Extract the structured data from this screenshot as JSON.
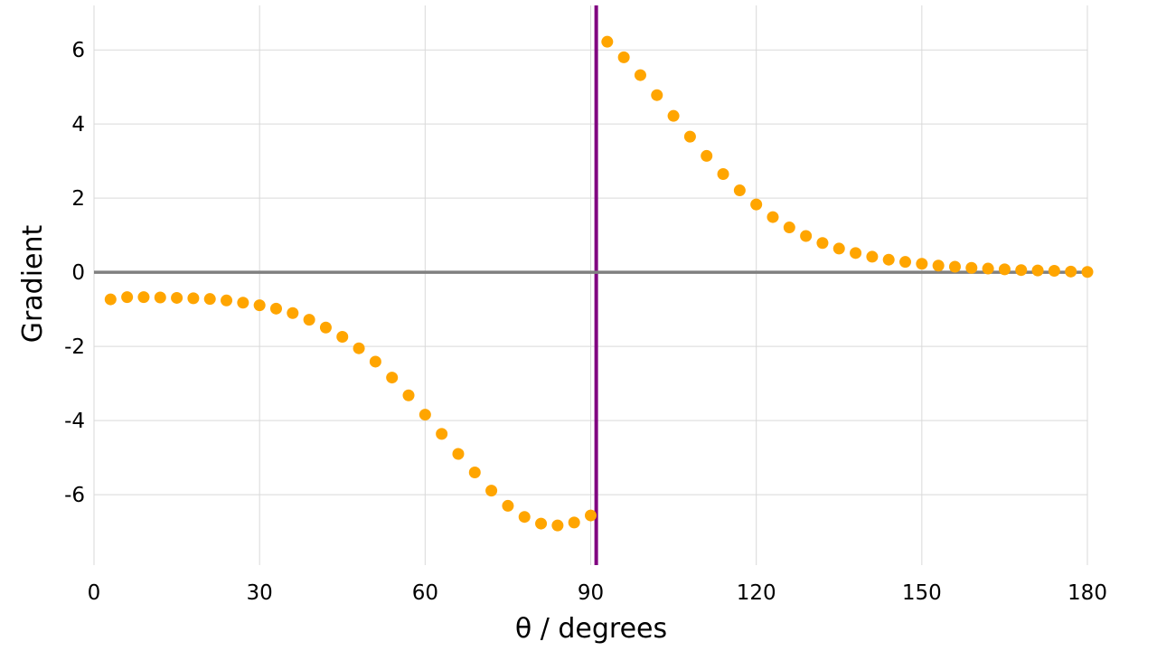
{
  "chart_data": {
    "type": "scatter",
    "title": "",
    "xlabel": "θ / degrees",
    "ylabel": "Gradient",
    "xlim": [
      0,
      180
    ],
    "ylim": [
      -7.9,
      7.2
    ],
    "x_ticks": [
      0,
      30,
      60,
      90,
      120,
      150,
      180
    ],
    "x_tick_labels": [
      "0",
      "30",
      "60",
      "90",
      "120",
      "150",
      "180"
    ],
    "y_ticks": [
      -6,
      -4,
      -2,
      0,
      2,
      4,
      6
    ],
    "y_tick_labels": [
      "-6",
      "-4",
      "-2",
      "0",
      "2",
      "4",
      "6"
    ],
    "grid": true,
    "legend": "none",
    "colors": {
      "points": "#ffa500",
      "vertical_line": "#800080",
      "zero_line": "#808080",
      "grid": "#d9d9d9"
    },
    "reference_lines": [
      {
        "orientation": "vertical",
        "x": 91,
        "color": "#800080"
      },
      {
        "orientation": "horizontal",
        "y": 0,
        "color": "#808080"
      }
    ],
    "series": [
      {
        "x": [
          3,
          6,
          9,
          12,
          15,
          18,
          21,
          24,
          27,
          30,
          33,
          36,
          39,
          42,
          45,
          48,
          51,
          54,
          57,
          60,
          63,
          66,
          69,
          72,
          75,
          78,
          81,
          84,
          87,
          90,
          93,
          96,
          99,
          102,
          105,
          108,
          111,
          114,
          117,
          120,
          123,
          126,
          129,
          132,
          135,
          138,
          141,
          144,
          147,
          150,
          153,
          156,
          159,
          162,
          165,
          168,
          171,
          174,
          177,
          180
        ],
        "y": [
          -0.73,
          -0.67,
          -0.67,
          -0.68,
          -0.69,
          -0.7,
          -0.72,
          -0.76,
          -0.82,
          -0.89,
          -0.98,
          -1.1,
          -1.28,
          -1.49,
          -1.74,
          -2.05,
          -2.41,
          -2.84,
          -3.32,
          -3.84,
          -4.36,
          -4.9,
          -5.4,
          -5.89,
          -6.3,
          -6.6,
          -6.78,
          -6.83,
          -6.75,
          -6.56,
          6.22,
          5.8,
          5.32,
          4.78,
          4.22,
          3.66,
          3.14,
          2.65,
          2.21,
          1.83,
          1.49,
          1.21,
          0.98,
          0.79,
          0.64,
          0.52,
          0.42,
          0.34,
          0.28,
          0.23,
          0.18,
          0.15,
          0.12,
          0.1,
          0.08,
          0.06,
          0.05,
          0.04,
          0.02,
          0.01
        ]
      }
    ]
  }
}
